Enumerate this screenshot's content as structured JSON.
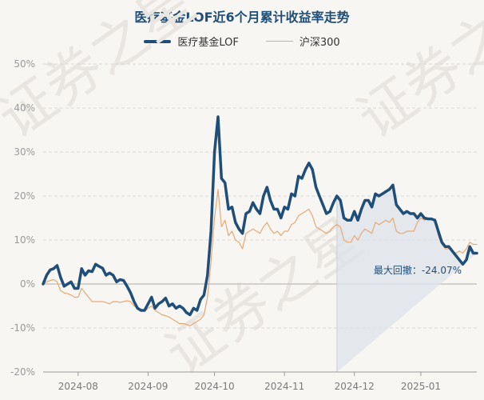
{
  "chart_data": {
    "type": "line",
    "title": "医疗基金LOF近6个月累计收益率走势",
    "watermark": "证券之星",
    "yticks": [
      "50%",
      "40%",
      "30%",
      "20%",
      "10%",
      "0%",
      "-10%",
      "-20%"
    ],
    "ylim": [
      -20,
      50
    ],
    "xticks": [
      "2024-08",
      "2024-09",
      "2024-10",
      "2024-11",
      "2024-12",
      "2025-01"
    ],
    "legend_position": "top-center",
    "annotation": "最大回撤：-24.07%",
    "colors": {
      "fund": "#1f4e79",
      "index": "#e8a873",
      "drawdown_fill": "#dde3ea"
    },
    "drawdown_range": [
      84,
      163
    ],
    "series": [
      {
        "name": "医疗基金LOF",
        "values": [
          0.0,
          2.0,
          3.2,
          3.5,
          4.2,
          1.5,
          -0.5,
          0.0,
          0.5,
          -1.0,
          -1.0,
          3.5,
          2.0,
          3.0,
          2.8,
          4.5,
          4.0,
          3.6,
          2.0,
          2.5,
          2.0,
          0.5,
          1.0,
          0.8,
          -0.5,
          -2.0,
          -4.0,
          -5.5,
          -6.0,
          -6.0,
          -4.5,
          -3.0,
          -5.5,
          -4.5,
          -4.0,
          -3.2,
          -5.0,
          -4.5,
          -5.5,
          -5.0,
          -5.5,
          -6.5,
          -7.0,
          -5.5,
          -6.0,
          -3.5,
          -2.5,
          2.0,
          12.0,
          30.0,
          38.0,
          24.0,
          23.0,
          17.0,
          17.5,
          14.0,
          12.5,
          11.5,
          16.0,
          16.5,
          18.5,
          17.0,
          16.0,
          20.0,
          22.0,
          19.0,
          17.0,
          17.0,
          15.0,
          17.5,
          17.0,
          20.5,
          20.0,
          24.5,
          24.0,
          26.0,
          27.5,
          26.0,
          22.0,
          20.0,
          18.0,
          16.0,
          16.5,
          18.5,
          20.0,
          19.0,
          15.0,
          14.5,
          14.5,
          16.5,
          14.5,
          17.0,
          19.0,
          19.0,
          17.5,
          20.5,
          20.0,
          20.5,
          21.0,
          21.5,
          22.5,
          18.0,
          17.0,
          16.0,
          16.5,
          16.0,
          16.0,
          15.0,
          16.0,
          15.0,
          14.8,
          14.8,
          14.5,
          12.0,
          9.5,
          8.5,
          8.5,
          7.5,
          6.5,
          5.5,
          4.5,
          5.5,
          8.5,
          7.0,
          7.0
        ],
        "ylim": [
          -20,
          50
        ]
      },
      {
        "name": "沪深300",
        "values": [
          0.0,
          0.5,
          0.8,
          1.0,
          0.5,
          -1.5,
          -2.0,
          -2.2,
          -2.5,
          -3.0,
          -3.0,
          -1.0,
          -2.0,
          -3.0,
          -4.0,
          -4.0,
          -4.0,
          -4.0,
          -4.2,
          -4.5,
          -4.0,
          -4.0,
          -4.2,
          -4.0,
          -3.8,
          -4.0,
          -5.0,
          -5.5,
          -6.0,
          -6.2,
          -5.5,
          -5.0,
          -6.0,
          -6.5,
          -7.0,
          -7.2,
          -7.5,
          -8.0,
          -8.5,
          -9.0,
          -9.0,
          -9.2,
          -9.5,
          -9.0,
          -8.5,
          -8.0,
          -7.0,
          -3.0,
          5.0,
          15.0,
          21.5,
          13.0,
          14.5,
          11.0,
          12.0,
          10.0,
          9.5,
          8.0,
          11.5,
          12.0,
          12.5,
          12.0,
          11.5,
          13.0,
          14.0,
          12.5,
          11.5,
          12.0,
          11.0,
          12.0,
          12.0,
          13.5,
          14.0,
          15.5,
          16.0,
          16.5,
          17.0,
          15.5,
          13.0,
          12.5,
          12.0,
          11.5,
          12.0,
          13.0,
          13.5,
          13.0,
          10.0,
          9.5,
          9.5,
          11.0,
          10.0,
          11.5,
          12.5,
          12.0,
          11.5,
          14.0,
          13.5,
          14.0,
          14.5,
          14.0,
          15.0,
          12.0,
          11.5,
          11.5,
          12.0,
          12.0,
          12.0,
          14.0,
          15.0,
          14.5,
          14.8,
          14.8,
          14.5,
          11.0,
          9.0,
          8.0,
          8.0,
          7.5,
          7.0,
          7.5,
          7.0,
          8.0,
          9.5,
          9.0,
          9.0
        ],
        "ylim": [
          -20,
          50
        ]
      }
    ]
  }
}
